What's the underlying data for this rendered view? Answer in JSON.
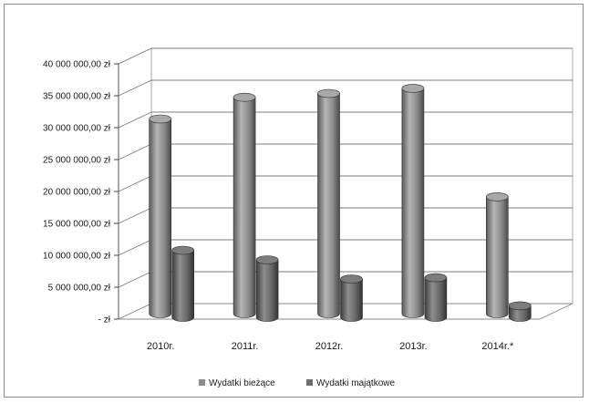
{
  "chart_data": {
    "type": "bar",
    "title": "",
    "xlabel": "",
    "ylabel": "",
    "categories": [
      "2010r.",
      "2011r.",
      "2012r.",
      "2013r.",
      "2014r.*"
    ],
    "series": [
      {
        "name": "Wydatki bieżące",
        "values": [
          30500000,
          33900000,
          34500000,
          35300000,
          18300000
        ],
        "color": "#8c8c8c"
      },
      {
        "name": "Wydatki majątkowe",
        "values": [
          10500000,
          9000000,
          6000000,
          6200000,
          1800000
        ],
        "color": "#6e6e6e"
      }
    ],
    "ylim": [
      0,
      40000000
    ],
    "yticks": [
      0,
      5000000,
      10000000,
      15000000,
      20000000,
      25000000,
      30000000,
      35000000,
      40000000
    ],
    "ytick_labels": [
      "-  zł",
      "5 000 000,00 zł",
      "10 000 000,00 zł",
      "15 000 000,00 zł",
      "20 000 000,00 zł",
      "25 000 000,00 zł",
      "30 000 000,00 zł",
      "35 000 000,00 zł",
      "40 000 000,00 zł"
    ],
    "grid": true,
    "legend_position": "bottom",
    "style": "3d-cylinder"
  }
}
